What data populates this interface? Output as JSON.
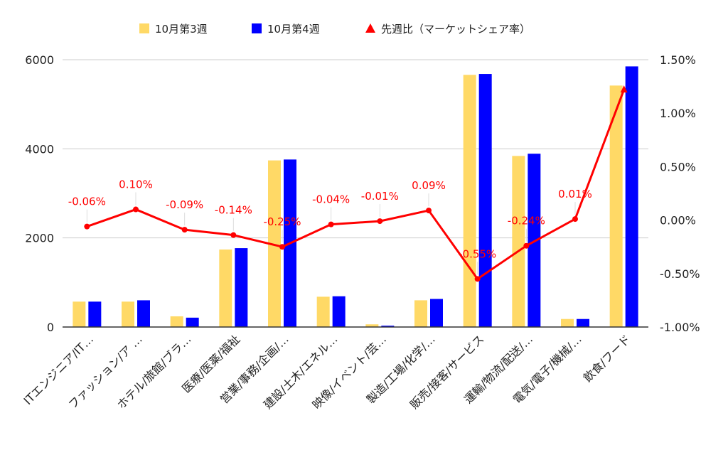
{
  "chart_data": {
    "type": "bar",
    "categories": [
      "ITエンジニア/IT…",
      "ファッション/ア …",
      "ホテル/旅館/ブラ…",
      "医療/医薬/福祉",
      "営業/事務/企画/…",
      "建設/土木/エネル…",
      "映像/イベント/芸…",
      "製造/工場/化学/…",
      "販売/接客/サービス",
      "運輸/物流/配送/…",
      "電気/電子/機械/…",
      "飲食/フード"
    ],
    "series": [
      {
        "name": "10月第3週",
        "kind": "bar",
        "axis": "left",
        "color": "#ffd966",
        "values": [
          570,
          570,
          240,
          1740,
          3740,
          680,
          60,
          600,
          5660,
          3840,
          180,
          5420
        ]
      },
      {
        "name": "10月第4週",
        "kind": "bar",
        "axis": "left",
        "color": "#0000ff",
        "values": [
          570,
          600,
          210,
          1770,
          3760,
          690,
          30,
          630,
          5680,
          3890,
          180,
          5850
        ]
      },
      {
        "name": "先週比（マーケットシェア率）",
        "kind": "line",
        "axis": "right",
        "color": "#ff0000",
        "values": [
          -0.06,
          0.1,
          -0.09,
          -0.14,
          -0.25,
          -0.04,
          -0.01,
          0.09,
          -0.55,
          -0.24,
          0.01,
          1.22
        ],
        "labels": [
          "-0.06%",
          "0.10%",
          "-0.09%",
          "-0.14%",
          "-0.25%",
          "-0.04%",
          "-0.01%",
          "0.09%",
          "-0.55%",
          "-0.24%",
          "0.01%",
          ""
        ]
      }
    ],
    "y_left": {
      "min": 0,
      "max": 6000,
      "ticks": [
        "0",
        "2000",
        "4000",
        "6000"
      ]
    },
    "y_right": {
      "min": -1.0,
      "max": 1.5,
      "ticks": [
        "-1.00%",
        "-0.50%",
        "0.00%",
        "0.50%",
        "1.00%",
        "1.50%"
      ]
    },
    "grid": true,
    "legend_position": "top"
  }
}
